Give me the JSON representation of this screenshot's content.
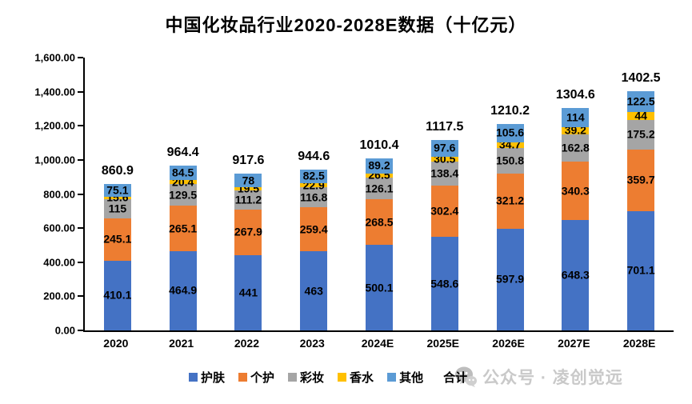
{
  "title": "中国化妆品行业2020-2028E数据（十亿元）",
  "legend": {
    "total_label": "合计"
  },
  "watermark": {
    "icon": "wechat-icon",
    "text": "公众号 · 凌创觉远",
    "color": "#c9c9c9"
  },
  "chart_data": {
    "type": "bar",
    "stacked": true,
    "title": "中国化妆品行业2020-2028E数据（十亿元）",
    "xlabel": "",
    "ylabel": "",
    "ylim": [
      0,
      1600
    ],
    "ytick_values": [
      0,
      200,
      400,
      600,
      800,
      1000,
      1200,
      1400,
      1600
    ],
    "ytick_labels": [
      "0.00",
      "200.00",
      "400.00",
      "600.00",
      "800.00",
      "1,000.00",
      "1,200.00",
      "1,400.00",
      "1,600.00"
    ],
    "grid": false,
    "legend_position": "bottom",
    "categories": [
      "2020",
      "2021",
      "2022",
      "2023",
      "2024E",
      "2025E",
      "2026E",
      "2027E",
      "2028E"
    ],
    "series": [
      {
        "name": "护肤",
        "color": "#4472C4",
        "values": [
          410.1,
          464.9,
          441,
          463,
          500.1,
          548.6,
          597.9,
          648.3,
          701.1
        ]
      },
      {
        "name": "个护",
        "color": "#ED7D31",
        "values": [
          245.1,
          265.1,
          267.9,
          259.4,
          268.5,
          302.4,
          321.2,
          340.3,
          359.7
        ]
      },
      {
        "name": "彩妆",
        "color": "#A5A5A5",
        "values": [
          115,
          129.5,
          111.2,
          116.8,
          126.1,
          138.4,
          150.8,
          162.8,
          175.2
        ]
      },
      {
        "name": "香水",
        "color": "#FFC000",
        "values": [
          15.6,
          20.4,
          19.5,
          22.9,
          26.5,
          30.5,
          34.7,
          39.2,
          44
        ]
      },
      {
        "name": "其他",
        "color": "#5B9BD5",
        "values": [
          75.1,
          84.5,
          78,
          82.5,
          89.2,
          97.6,
          105.6,
          114,
          122.5
        ]
      }
    ],
    "totals": {
      "name": "合计",
      "values": [
        860.9,
        964.4,
        917.6,
        944.6,
        1010.4,
        1117.5,
        1210.2,
        1304.6,
        1402.5
      ]
    }
  }
}
